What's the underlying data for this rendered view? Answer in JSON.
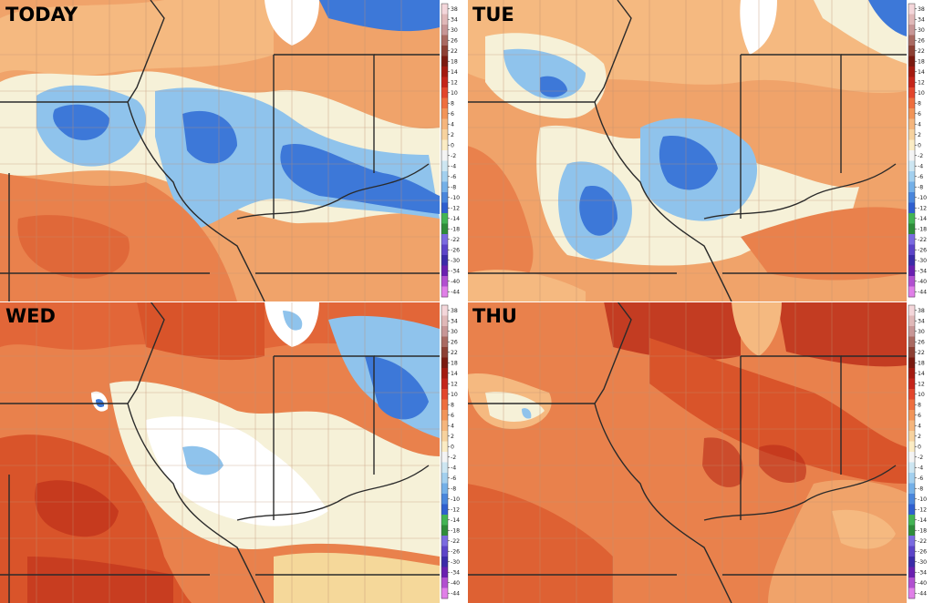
{
  "panels": [
    {
      "label": "TODAY"
    },
    {
      "label": "TUE"
    },
    {
      "label": "WED"
    },
    {
      "label": "THU"
    }
  ],
  "legend": {
    "ticks": [
      "38",
      "34",
      "30",
      "26",
      "22",
      "18",
      "14",
      "12",
      "10",
      "8",
      "6",
      "4",
      "2",
      "0",
      "-2",
      "-4",
      "-6",
      "-8",
      "-10",
      "-12",
      "-14",
      "-18",
      "-22",
      "-26",
      "-30",
      "-34",
      "-40",
      "-44"
    ],
    "colors": [
      "#f4d6da",
      "#e0b8b8",
      "#c79696",
      "#a96a62",
      "#8d4034",
      "#7a1a10",
      "#a31a10",
      "#c4241a",
      "#e2452c",
      "#ee6e3e",
      "#f29458",
      "#f5b57c",
      "#f7d29e",
      "#fbecc4",
      "#f4f4f4",
      "#cde6f2",
      "#a3d0ef",
      "#74b0e8",
      "#4a86dc",
      "#2f5fcf",
      "#43b454",
      "#2f8c3a",
      "#7a6ae0",
      "#5c44c8",
      "#3b2ba8",
      "#6a1fb0",
      "#b14fd0",
      "#e07fe8"
    ]
  },
  "palette": {
    "warm_base": "#f0a36a",
    "hot": "#d9542a",
    "very_hot": "#b92a18",
    "near_zero": "#f6f1d8",
    "cool": "#8fc3ec",
    "cold": "#3d78d8"
  }
}
